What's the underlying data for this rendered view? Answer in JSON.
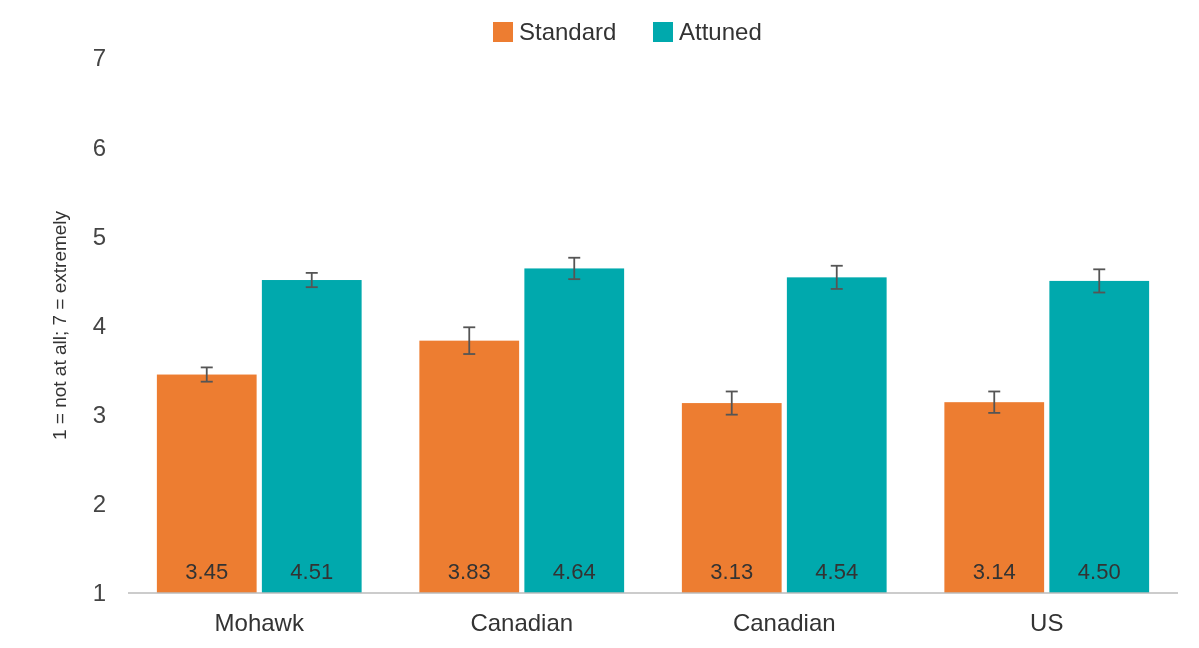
{
  "chart_data": {
    "type": "bar",
    "ylabel": "1 = not at all; 7 = extremely",
    "categories": [
      "Mohawk",
      "Canadian",
      "Canadian",
      "US"
    ],
    "series": [
      {
        "name": "Standard",
        "color": "#ed7d31",
        "values": [
          3.45,
          3.83,
          3.13,
          3.14
        ],
        "value_labels": [
          "3.45",
          "3.83",
          "3.13",
          "3.14"
        ],
        "errors": [
          0.08,
          0.15,
          0.13,
          0.12
        ]
      },
      {
        "name": "Attuned",
        "color": "#00a9ad",
        "values": [
          4.51,
          4.64,
          4.54,
          4.5
        ],
        "value_labels": [
          "4.51",
          "4.64",
          "4.54",
          "4.50"
        ],
        "errors": [
          0.08,
          0.12,
          0.13,
          0.13
        ]
      }
    ],
    "ylim": [
      1,
      7
    ],
    "yticks": [
      1,
      2,
      3,
      4,
      5,
      6,
      7
    ],
    "grid": false,
    "legend": "top"
  }
}
